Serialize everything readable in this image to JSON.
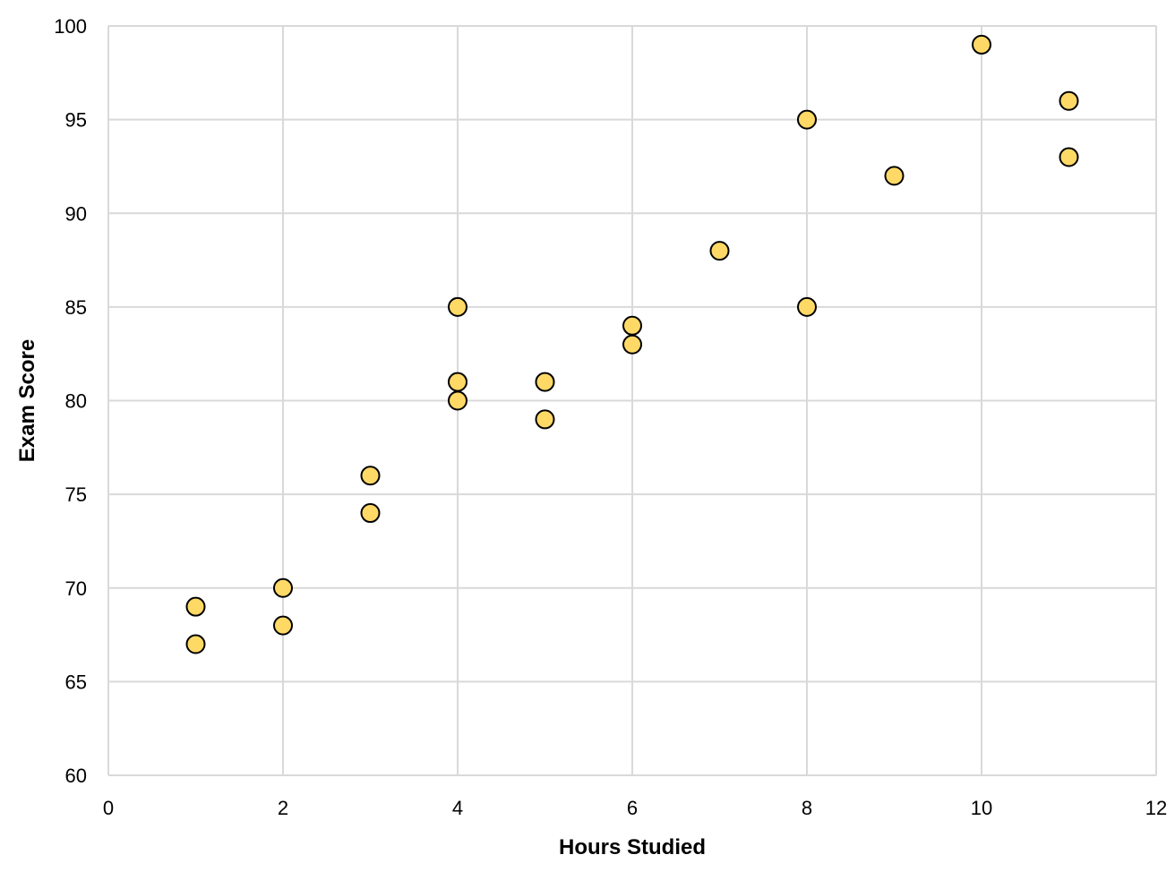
{
  "chart_data": {
    "type": "scatter",
    "title": "",
    "xlabel": "Hours Studied",
    "ylabel": "Exam Score",
    "xlim": [
      0,
      12
    ],
    "ylim": [
      60,
      100
    ],
    "x_ticks": [
      "0",
      "2",
      "4",
      "6",
      "8",
      "10",
      "12"
    ],
    "y_ticks": [
      "60",
      "65",
      "70",
      "75",
      "80",
      "85",
      "90",
      "95",
      "100"
    ],
    "grid": true,
    "legend": "none",
    "marker_fill": "#FFD966",
    "marker_stroke": "#000000",
    "series": [
      {
        "x": [
          1,
          1,
          2,
          2,
          3,
          3,
          4,
          4,
          4,
          5,
          5,
          6,
          6,
          7,
          8,
          8,
          9,
          10,
          11,
          11
        ],
        "y": [
          69,
          67,
          70,
          68,
          76,
          74,
          85,
          81,
          80,
          81,
          79,
          84,
          83,
          88,
          95,
          85,
          92,
          99,
          96,
          93
        ]
      }
    ]
  }
}
